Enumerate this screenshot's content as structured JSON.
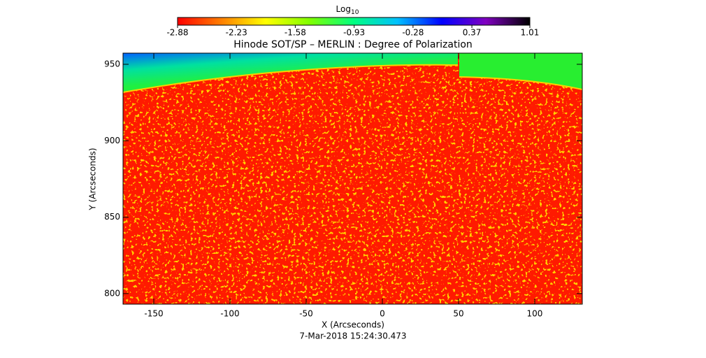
{
  "chart_data": {
    "type": "image",
    "title": "Hinode SOT/SP – MERLIN : Degree of Polarization",
    "x_label": "X (Arcseconds)",
    "y_label": "Y (Arcseconds)",
    "date": "7-Mar-2018 15:24:30.473",
    "xlim": [
      -170.2,
      131.2
    ],
    "xticks": [
      -150,
      -100,
      -50,
      0,
      50,
      100
    ],
    "ylim": [
      793.1,
      957.3
    ],
    "yticks": [
      800,
      850,
      900,
      950
    ],
    "colorbar_label": "Log",
    "colorbar_label_sub": "10",
    "colorbar_lim": [
      -2.88,
      1.01
    ],
    "colorbar_ticks": [
      -2.88,
      -2.23,
      -1.58,
      -0.93,
      -0.28,
      0.37,
      1.01
    ],
    "colormap": [
      "#ff0000",
      "#ff8000",
      "#ffff00",
      "#80ff00",
      "#00ff80",
      "#00c0ff",
      "#0000ff",
      "#8000c0",
      "#000000"
    ]
  }
}
